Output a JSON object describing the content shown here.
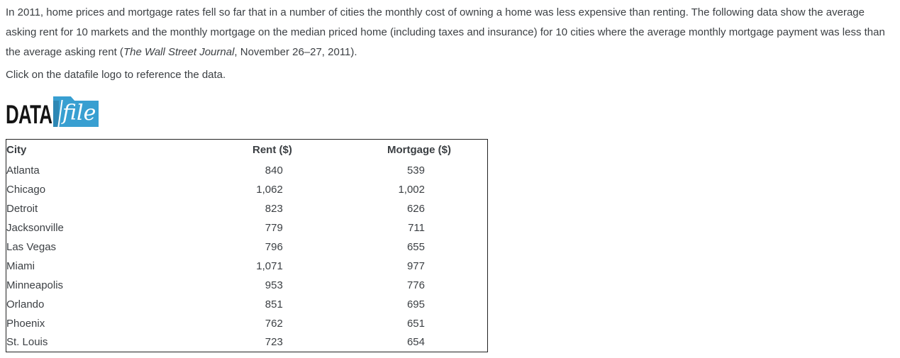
{
  "page": {
    "background": "#ffffff",
    "text_color": "#3b3f43"
  },
  "intro": {
    "part1": "In 2011, home prices and mortgage rates fell so far that in a number of cities the monthly cost of owning a home was less expensive than renting. The following data show the average asking rent for 10 markets and the monthly mortgage on the median priced home (including taxes and insurance) for 10 cities where the average monthly mortgage payment was less than the average asking rent (",
    "source_italic": "The Wall Street Journal",
    "part2": ", November 26–27, 2011).",
    "instruction": "Click on the datafile logo to reference the data."
  },
  "datafile_logo": {
    "data_label": "DATA",
    "file_label": "file",
    "folder_front_color": "#389fd1",
    "folder_back_color": "#2d87b4"
  },
  "table": {
    "columns": [
      "City",
      "Rent ($)",
      "Mortgage ($)"
    ],
    "rows": [
      [
        "Atlanta",
        "840",
        "539"
      ],
      [
        "Chicago",
        "1,062",
        "1,002"
      ],
      [
        "Detroit",
        "823",
        "626"
      ],
      [
        "Jacksonville",
        "779",
        "711"
      ],
      [
        "Las Vegas",
        "796",
        "655"
      ],
      [
        "Miami",
        "1,071",
        "977"
      ],
      [
        "Minneapolis",
        "953",
        "776"
      ],
      [
        "Orlando",
        "851",
        "695"
      ],
      [
        "Phoenix",
        "762",
        "651"
      ],
      [
        "St. Louis",
        "723",
        "654"
      ]
    ]
  }
}
